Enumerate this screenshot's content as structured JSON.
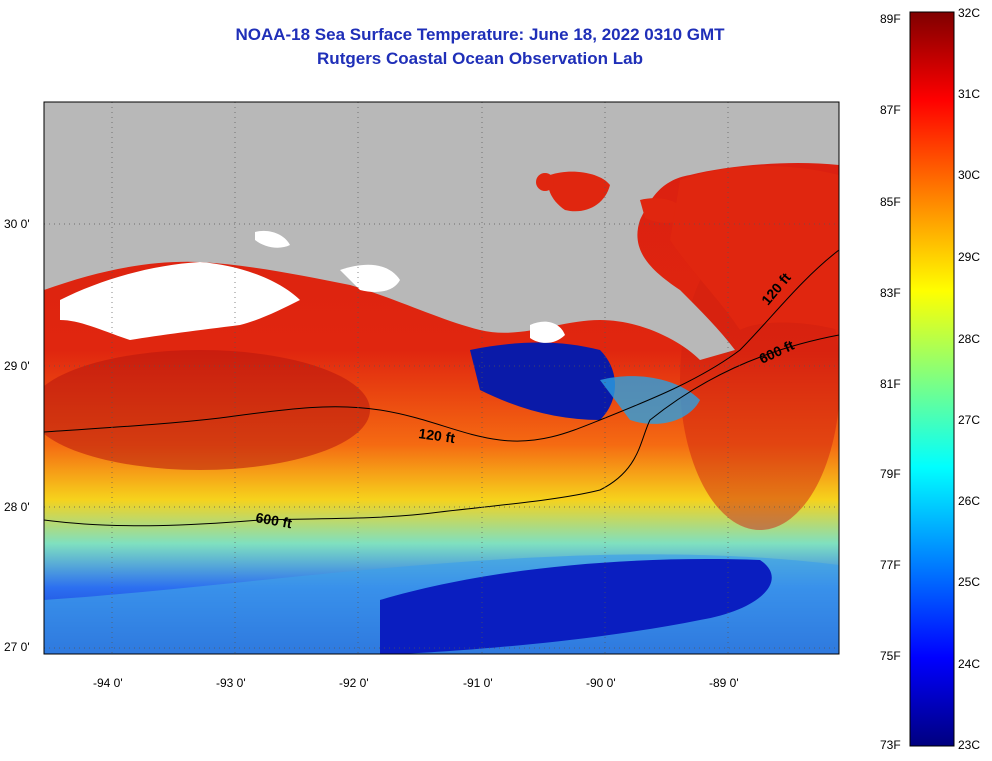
{
  "title": "NOAA-18 Sea Surface Temperature:  June 18, 2022 0310 GMT",
  "subtitle": "Rutgers Coastal Ocean Observation Lab",
  "lat_labels": [
    "30 0'",
    "29 0'",
    "28 0'",
    "27 0'"
  ],
  "lon_labels": [
    "-94 0'",
    "-93 0'",
    "-92 0'",
    "-91 0'",
    "-90 0'",
    "-89 0'"
  ],
  "contour_labels": [
    "120 ft",
    "600 ft",
    "120 ft",
    "600 ft"
  ],
  "colorbar": {
    "fahrenheit": [
      "89F",
      "87F",
      "85F",
      "83F",
      "81F",
      "79F",
      "77F",
      "75F",
      "73F"
    ],
    "celsius": [
      "32C",
      "31C",
      "30C",
      "29C",
      "28C",
      "27C",
      "26C",
      "25C",
      "24C",
      "23C"
    ],
    "scale": [
      "#00007f",
      "#0000ff",
      "#0080ff",
      "#00ffff",
      "#80ff80",
      "#ffff00",
      "#ff8000",
      "#ff0000",
      "#7f0000"
    ]
  },
  "colors": {
    "land": "#b8b8b8",
    "cloud": "#ffffff",
    "title": "#1f2fb8"
  }
}
